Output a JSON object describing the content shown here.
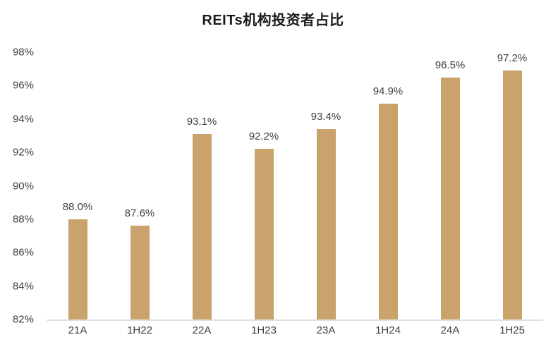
{
  "chart_data": {
    "type": "bar",
    "title": "REITs机构投资者占比",
    "categories": [
      "21A",
      "1H22",
      "22A",
      "1H23",
      "23A",
      "1H24",
      "24A",
      "1H25"
    ],
    "values": [
      88.0,
      87.6,
      93.1,
      92.2,
      93.4,
      94.9,
      96.5,
      97.2
    ],
    "value_labels": [
      "88.0%",
      "87.6%",
      "93.1%",
      "92.2%",
      "93.4%",
      "94.9%",
      "96.5%",
      "97.2%"
    ],
    "xlabel": "",
    "ylabel": "",
    "ylim": [
      82,
      98
    ],
    "ytick_values": [
      98,
      96,
      94,
      92,
      90,
      88,
      86,
      84,
      82
    ],
    "ytick_labels": [
      "98%",
      "96%",
      "94%",
      "92%",
      "90%",
      "88%",
      "86%",
      "84%",
      "82%"
    ],
    "grid": false,
    "legend_position": "none",
    "bar_color": "#C9A36B",
    "axis_line_color": "#E0E0E0",
    "label_color": "#404040",
    "title_color": "#1a1a1a"
  }
}
